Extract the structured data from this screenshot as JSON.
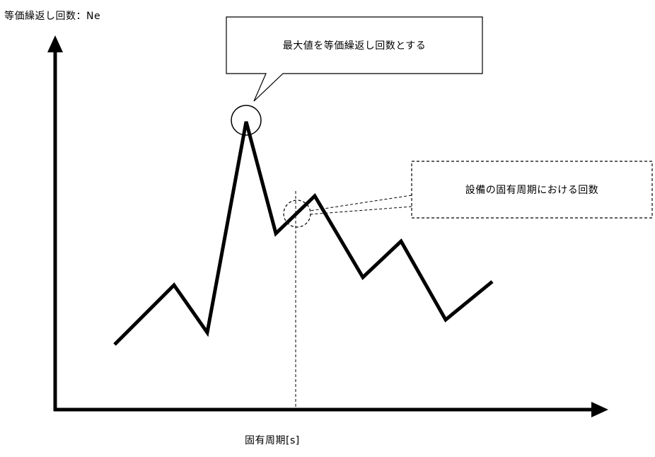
{
  "y_axis_label": "等価繰返し回数：Ne",
  "x_axis_label": "固有周期[s]",
  "callouts": {
    "max": "最大値を等価繰返し回数とする",
    "natural_period": "設備の固有周期における回数"
  }
}
